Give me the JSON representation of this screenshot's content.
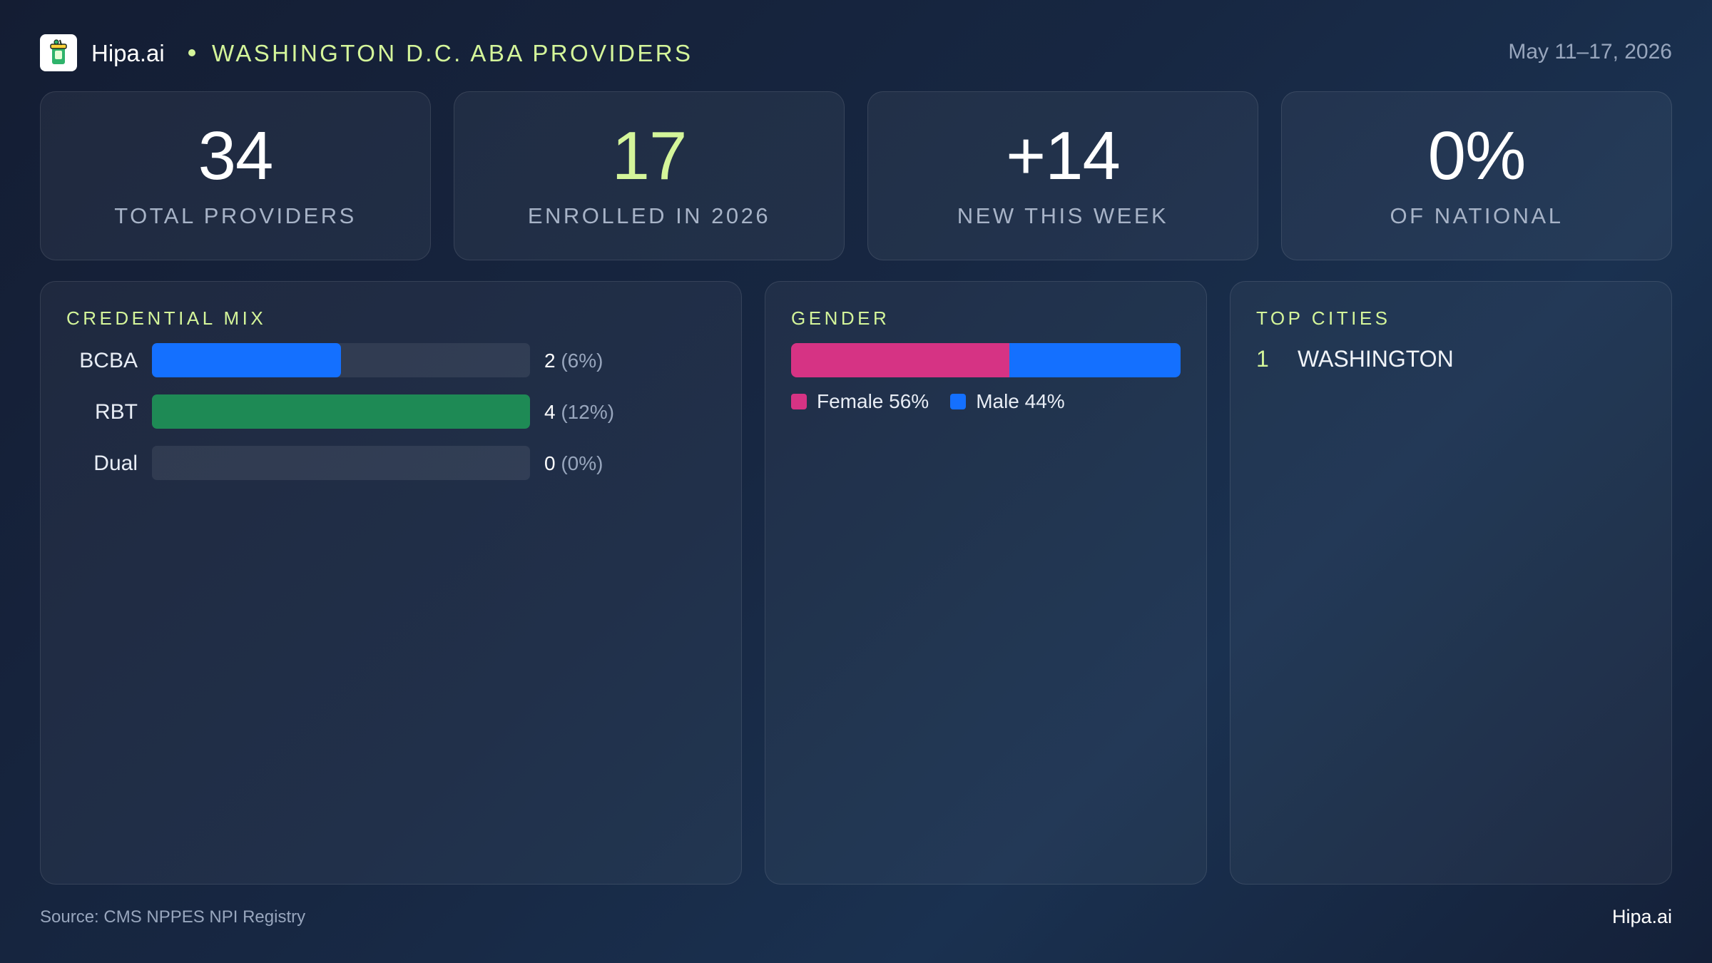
{
  "header": {
    "logo_icon": "cup-icon",
    "brand": "Hipa.ai",
    "title": "WASHINGTON  D.C. ABA PROVIDERS",
    "date_range": "May 11–17, 2026"
  },
  "kpis": [
    {
      "value": "34",
      "label": "TOTAL  PROVIDERS",
      "color": "#ffffff"
    },
    {
      "value": "17",
      "label": "ENROLLED  IN  2026",
      "color": "#d4f59a"
    },
    {
      "value": "+14",
      "label": "NEW  THIS  WEEK",
      "color": "#ffffff"
    },
    {
      "value": "0%",
      "label": "OF  NATIONAL",
      "color": "#ffffff"
    }
  ],
  "credential_mix": {
    "title": "CREDENTIAL  MIX",
    "rows": [
      {
        "label": "BCBA",
        "count": "2",
        "pct": "(6%)",
        "fill_fraction": 0.5,
        "color": "#1470ff"
      },
      {
        "label": "RBT",
        "count": "4",
        "pct": "(12%)",
        "fill_fraction": 1.0,
        "color": "#1e8a55"
      },
      {
        "label": "Dual",
        "count": "0",
        "pct": "(0%)",
        "fill_fraction": 0.0,
        "color": "#1470ff"
      }
    ]
  },
  "gender": {
    "title": "GENDER",
    "female_label": "Female 56%",
    "male_label": "Male 44%",
    "female_fraction": 0.56,
    "male_fraction": 0.44,
    "female_color": "#d63384",
    "male_color": "#1470ff"
  },
  "top_cities": {
    "title": "TOP  CITIES",
    "items": [
      {
        "rank": "1",
        "name": "WASHINGTON"
      }
    ]
  },
  "footer": {
    "source": "Source: CMS NPPES NPI Registry",
    "brand": "Hipa.ai"
  }
}
